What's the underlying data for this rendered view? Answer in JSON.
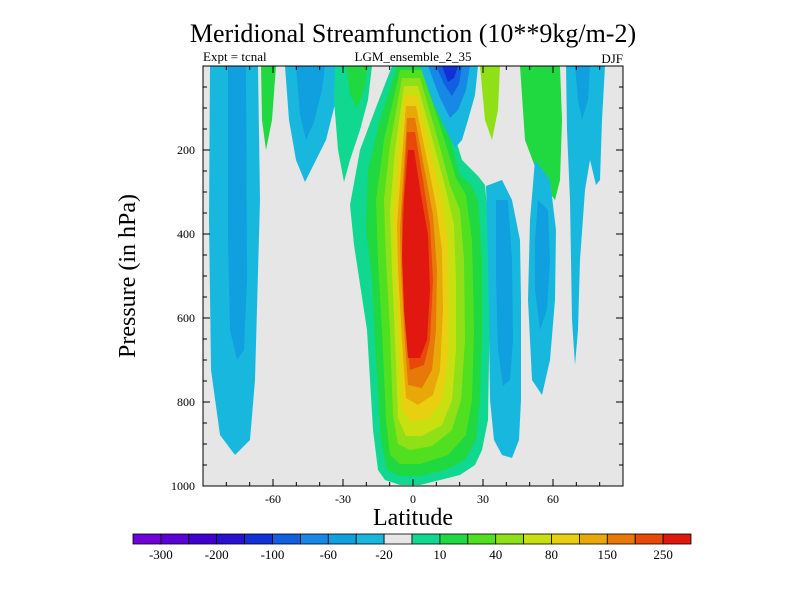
{
  "chart_data": {
    "type": "contour",
    "title": "Meridional Streamfunction (10**9kg/m-2)",
    "subtitle_left": "Expt = tcnal",
    "subtitle_center": "LGM_ensemble_2_35",
    "subtitle_right": "DJF",
    "xlabel": "Latitude",
    "ylabel": "Pressure (in hPa)",
    "xlim": [
      -90,
      90
    ],
    "ylim": [
      1000,
      0
    ],
    "x_ticks": [
      -60,
      -30,
      0,
      30,
      60
    ],
    "x_tick_labels": [
      "-60",
      "-30",
      "0",
      "30",
      "60"
    ],
    "y_ticks": [
      200,
      400,
      600,
      800,
      1000
    ],
    "y_tick_labels": [
      "200",
      "400",
      "600",
      "800",
      "1000"
    ],
    "background_color": "#e6e6e6",
    "colorbar": {
      "colors": [
        "#6f00d8",
        "#5a00d6",
        "#4000d0",
        "#2a10d0",
        "#1030d8",
        "#1060e0",
        "#1888e6",
        "#10a0e0",
        "#18b8de",
        "#e6e6e6",
        "#10d890",
        "#20d840",
        "#50e020",
        "#90e018",
        "#c8e010",
        "#e8d010",
        "#e8a808",
        "#e87808",
        "#e84808",
        "#e01810"
      ],
      "labels": [
        "-300",
        "-200",
        "-100",
        "-60",
        "-20",
        "10",
        "40",
        "80",
        "150",
        "250"
      ]
    },
    "regions": [
      {
        "name": "nh-hadley-cell",
        "sign": "positive",
        "peak_lat": 0,
        "peak_pressure": 500,
        "peak_level": "250+"
      },
      {
        "name": "sh-cell-left",
        "sign": "negative",
        "peak_lat": -72,
        "peak_pressure": 600,
        "peak_level": "-60"
      },
      {
        "name": "sh-ferrel-cell",
        "sign": "negative",
        "peak_lat": -50,
        "peak_pressure": 150,
        "peak_level": "-20"
      },
      {
        "name": "nh-ferrel-cell",
        "sign": "negative",
        "peak_lat": 40,
        "peak_pressure": 600,
        "peak_level": "-60"
      },
      {
        "name": "nh-polar-cell",
        "sign": "negative",
        "peak_lat": 68,
        "peak_pressure": 100,
        "peak_level": "-20"
      },
      {
        "name": "upper-tropical-negative",
        "sign": "negative",
        "peak_lat": 12,
        "peak_pressure": 20,
        "peak_level": "-100"
      }
    ]
  }
}
